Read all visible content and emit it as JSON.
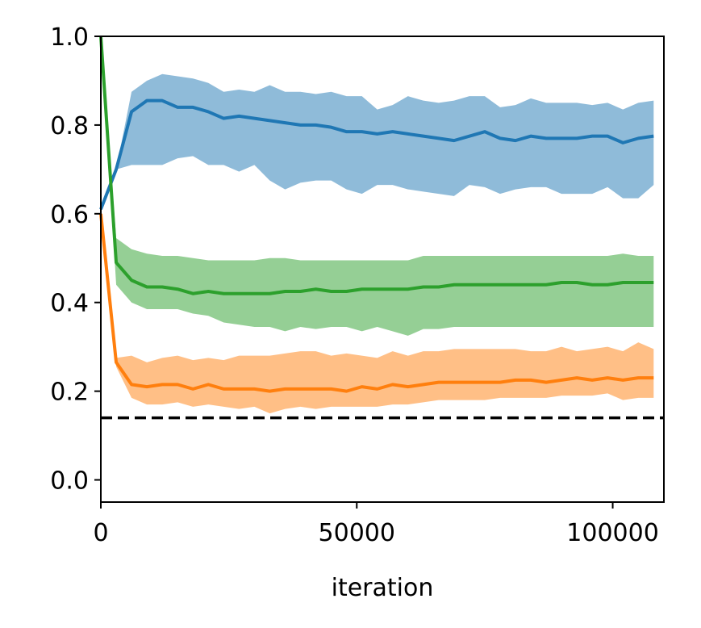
{
  "chart_data": {
    "type": "line",
    "title": "",
    "xlabel": "iteration",
    "ylabel": "",
    "xlim": [
      0,
      110000
    ],
    "ylim": [
      -0.05,
      1.0
    ],
    "xticks": [
      0,
      50000,
      100000
    ],
    "xtick_labels": [
      "0",
      "50000",
      "100000"
    ],
    "yticks": [
      0.0,
      0.2,
      0.4,
      0.6,
      0.8,
      1.0
    ],
    "ytick_labels": [
      "0.0",
      "0.2",
      "0.4",
      "0.6",
      "0.8",
      "1.0"
    ],
    "grid": false,
    "legend": "none",
    "x": [
      0,
      3000,
      6000,
      9000,
      12000,
      15000,
      18000,
      21000,
      24000,
      27000,
      30000,
      33000,
      36000,
      39000,
      42000,
      45000,
      48000,
      51000,
      54000,
      57000,
      60000,
      63000,
      66000,
      69000,
      72000,
      75000,
      78000,
      81000,
      84000,
      87000,
      90000,
      93000,
      96000,
      99000,
      102000,
      105000,
      108000
    ],
    "series": [
      {
        "color": "#1f77b4",
        "values": [
          0.61,
          0.7,
          0.83,
          0.855,
          0.855,
          0.84,
          0.84,
          0.83,
          0.815,
          0.82,
          0.815,
          0.81,
          0.805,
          0.8,
          0.8,
          0.795,
          0.785,
          0.785,
          0.78,
          0.785,
          0.78,
          0.775,
          0.77,
          0.765,
          0.775,
          0.785,
          0.77,
          0.765,
          0.775,
          0.77,
          0.77,
          0.77,
          0.775,
          0.775,
          0.76,
          0.77,
          0.775
        ],
        "lower": [
          0.61,
          0.7,
          0.71,
          0.71,
          0.71,
          0.725,
          0.73,
          0.71,
          0.71,
          0.695,
          0.71,
          0.675,
          0.655,
          0.67,
          0.675,
          0.675,
          0.655,
          0.645,
          0.665,
          0.665,
          0.655,
          0.65,
          0.645,
          0.64,
          0.665,
          0.66,
          0.645,
          0.655,
          0.66,
          0.66,
          0.645,
          0.645,
          0.645,
          0.66,
          0.635,
          0.635,
          0.665
        ],
        "upper": [
          0.61,
          0.7,
          0.875,
          0.9,
          0.915,
          0.91,
          0.905,
          0.895,
          0.875,
          0.88,
          0.875,
          0.89,
          0.875,
          0.875,
          0.87,
          0.875,
          0.865,
          0.865,
          0.835,
          0.845,
          0.865,
          0.855,
          0.85,
          0.855,
          0.865,
          0.865,
          0.84,
          0.845,
          0.86,
          0.85,
          0.85,
          0.85,
          0.845,
          0.85,
          0.835,
          0.85,
          0.855
        ]
      },
      {
        "color": "#ff7f0e",
        "values": [
          0.6,
          0.265,
          0.215,
          0.21,
          0.215,
          0.215,
          0.205,
          0.215,
          0.205,
          0.205,
          0.205,
          0.2,
          0.205,
          0.205,
          0.205,
          0.205,
          0.2,
          0.21,
          0.205,
          0.215,
          0.21,
          0.215,
          0.22,
          0.22,
          0.22,
          0.22,
          0.22,
          0.225,
          0.225,
          0.22,
          0.225,
          0.23,
          0.225,
          0.23,
          0.225,
          0.23,
          0.23
        ],
        "lower": [
          0.6,
          0.255,
          0.185,
          0.17,
          0.17,
          0.175,
          0.165,
          0.17,
          0.165,
          0.16,
          0.165,
          0.15,
          0.16,
          0.165,
          0.16,
          0.165,
          0.165,
          0.165,
          0.165,
          0.17,
          0.17,
          0.175,
          0.18,
          0.18,
          0.18,
          0.18,
          0.185,
          0.185,
          0.185,
          0.185,
          0.19,
          0.19,
          0.19,
          0.195,
          0.18,
          0.185,
          0.185
        ],
        "upper": [
          0.6,
          0.275,
          0.28,
          0.265,
          0.275,
          0.28,
          0.27,
          0.275,
          0.27,
          0.28,
          0.28,
          0.28,
          0.285,
          0.29,
          0.29,
          0.28,
          0.285,
          0.28,
          0.275,
          0.29,
          0.28,
          0.29,
          0.29,
          0.295,
          0.295,
          0.295,
          0.295,
          0.295,
          0.29,
          0.29,
          0.3,
          0.29,
          0.295,
          0.3,
          0.29,
          0.31,
          0.295
        ]
      },
      {
        "color": "#2ca02c",
        "values": [
          1.0,
          0.49,
          0.45,
          0.435,
          0.435,
          0.43,
          0.42,
          0.425,
          0.42,
          0.42,
          0.42,
          0.42,
          0.425,
          0.425,
          0.43,
          0.425,
          0.425,
          0.43,
          0.43,
          0.43,
          0.43,
          0.435,
          0.435,
          0.44,
          0.44,
          0.44,
          0.44,
          0.44,
          0.44,
          0.44,
          0.445,
          0.445,
          0.44,
          0.44,
          0.445,
          0.445,
          0.445
        ],
        "lower": [
          1.0,
          0.44,
          0.4,
          0.385,
          0.385,
          0.385,
          0.375,
          0.37,
          0.355,
          0.35,
          0.345,
          0.345,
          0.335,
          0.345,
          0.34,
          0.345,
          0.345,
          0.335,
          0.345,
          0.335,
          0.325,
          0.34,
          0.34,
          0.345,
          0.345,
          0.345,
          0.345,
          0.345,
          0.345,
          0.345,
          0.345,
          0.345,
          0.345,
          0.345,
          0.345,
          0.345,
          0.345
        ],
        "upper": [
          1.0,
          0.545,
          0.52,
          0.51,
          0.505,
          0.505,
          0.5,
          0.495,
          0.495,
          0.495,
          0.495,
          0.5,
          0.5,
          0.495,
          0.495,
          0.495,
          0.495,
          0.495,
          0.495,
          0.495,
          0.495,
          0.505,
          0.505,
          0.505,
          0.505,
          0.505,
          0.505,
          0.505,
          0.505,
          0.505,
          0.505,
          0.505,
          0.505,
          0.505,
          0.51,
          0.505,
          0.505
        ]
      }
    ],
    "reference_line": {
      "y": 0.14,
      "color": "#000000",
      "style": "dashed"
    }
  }
}
